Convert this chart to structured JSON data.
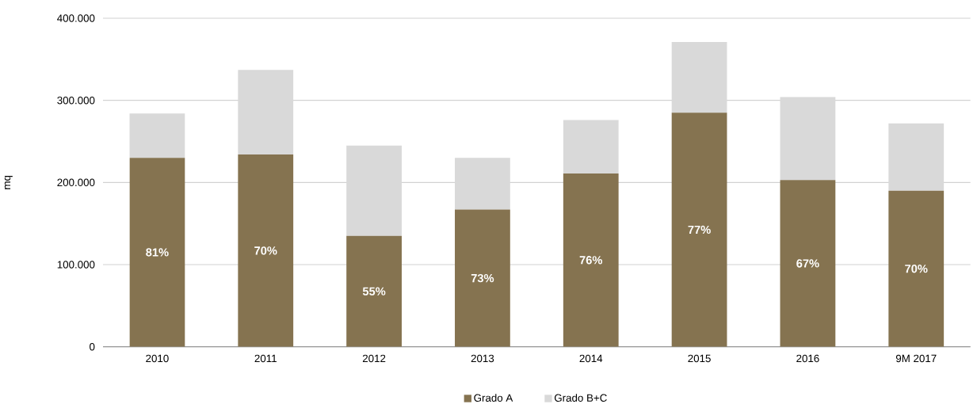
{
  "chart_data": {
    "type": "bar",
    "stacked": true,
    "ylabel": "mq",
    "categories": [
      "2010",
      "2011",
      "2012",
      "2013",
      "2014",
      "2015",
      "2016",
      "9M 2017"
    ],
    "series": [
      {
        "name": "Grado A",
        "color": "#857350",
        "values": [
          230000,
          234000,
          135000,
          167000,
          211000,
          285000,
          203000,
          190000
        ]
      },
      {
        "name": "Grado B+C",
        "color": "#d9d9d9",
        "values": [
          54000,
          103000,
          110000,
          63000,
          65000,
          86000,
          101000,
          82000
        ]
      }
    ],
    "annotations": [
      "81%",
      "70%",
      "55%",
      "73%",
      "76%",
      "77%",
      "67%",
      "70%"
    ],
    "ylim": [
      0,
      400000
    ],
    "yticks": [
      0,
      {
        "value": 100000,
        "label": "100.000"
      },
      {
        "value": 200000,
        "label": "200.000"
      },
      {
        "value": 300000,
        "label": "300.000"
      },
      {
        "value": 400000,
        "label": "400.000"
      }
    ],
    "grid": "y",
    "legend": "bottom"
  }
}
